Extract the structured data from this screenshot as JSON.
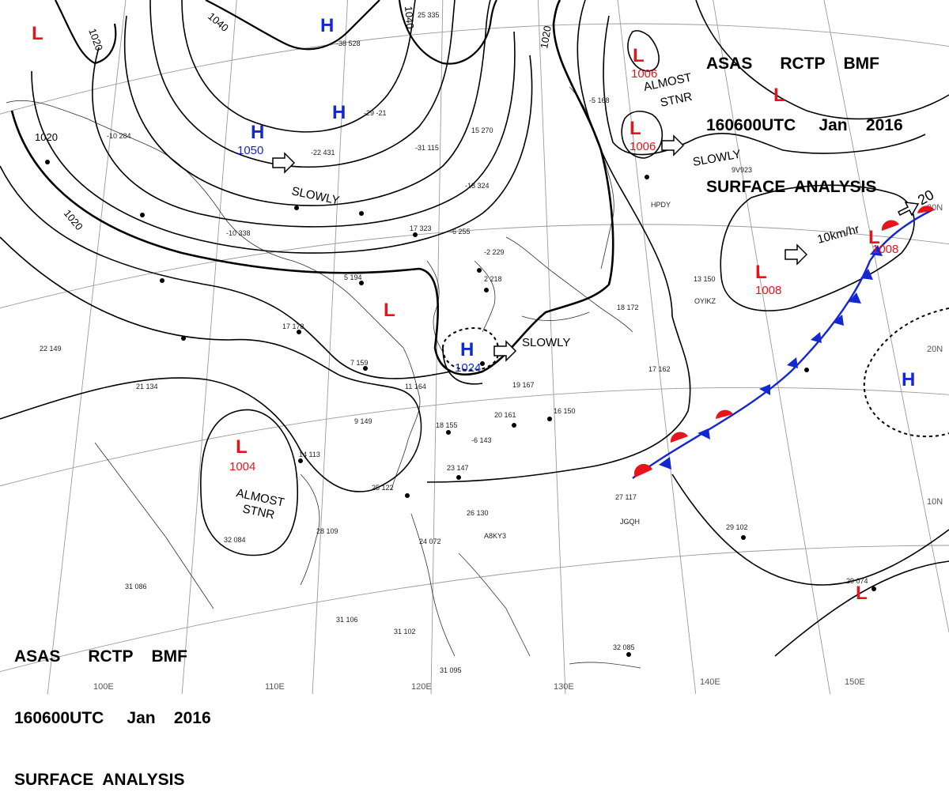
{
  "header_top": {
    "line1": "ASAS      RCTP    BMF",
    "line2": "160600UTC     Jan    2016",
    "line3": "SURFACE  ANALYSIS"
  },
  "header_bottom": {
    "line1": "ASAS      RCTP    BMF",
    "line2": "160600UTC     Jan    2016",
    "line3": "SURFACE  ANALYSIS"
  },
  "colors": {
    "low": "#e8141c",
    "high": "#1428d2",
    "warm_front": "#e8141c",
    "cold_front": "#1428d2",
    "isobar": "#000000",
    "grid": "#9a9a9a"
  },
  "isobar_labels": [
    "1020",
    "1040",
    "1040",
    "1020",
    "1020",
    "1020"
  ],
  "pressure_systems": [
    {
      "type": "L",
      "value": ""
    },
    {
      "type": "H",
      "value": ""
    },
    {
      "type": "H",
      "value": ""
    },
    {
      "type": "H",
      "value": "1050"
    },
    {
      "type": "L",
      "value": "1006"
    },
    {
      "type": "L",
      "value": "1006"
    },
    {
      "type": "L",
      "value": ""
    },
    {
      "type": "L",
      "value": ""
    },
    {
      "type": "H",
      "value": "1024"
    },
    {
      "type": "L",
      "value": "1008"
    },
    {
      "type": "L",
      "value": "1008"
    },
    {
      "type": "L",
      "value": "1004"
    },
    {
      "type": "H",
      "value": ""
    },
    {
      "type": "L",
      "value": ""
    }
  ],
  "motion_labels": [
    "SLOWLY",
    "SLOWLY",
    "SLOWLY",
    "10km/hr",
    "20"
  ],
  "stationary_labels": [
    {
      "line1": "ALMOST",
      "line2": "STNR"
    },
    {
      "line1": "ALMOST",
      "line2": "STNR"
    }
  ],
  "longitude_labels": [
    "100E",
    "110E",
    "120E",
    "130E",
    "140E",
    "150E"
  ],
  "latitude_labels": [
    "30N",
    "20N",
    "10N"
  ],
  "station_labels": [
    "HPDY",
    "OYIKZ",
    "JGQH",
    "A8KY3",
    "9V923"
  ],
  "station_obs": [
    "-38 528",
    "-29 -21",
    "-22 431",
    "-10 338",
    "15 270",
    "17 323",
    "-6 255",
    "-2 229",
    "5 194",
    "17 178",
    "22 149",
    "21 134",
    "7 159",
    "11 164",
    "19 167",
    "20 161",
    "9 149",
    "18 155",
    "14 113",
    "25 122",
    "23 147",
    "28 109",
    "32 084",
    "31 086",
    "31 106",
    "31 102",
    "31 095",
    "26 130",
    "24 072",
    "17 162",
    "27 117",
    "29 102",
    "32 085",
    "29 074",
    "13 150",
    "16 150",
    "-18 324",
    "-5 168",
    "-10 284",
    "2 218",
    "-6 143",
    "18 172",
    "25 335",
    "-31 115"
  ]
}
